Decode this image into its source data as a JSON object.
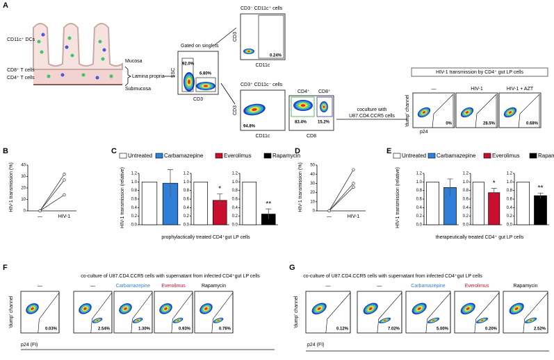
{
  "panel_labels": [
    "A",
    "B",
    "C",
    "D",
    "E",
    "F",
    "G"
  ],
  "panel_a": {
    "tissue": {
      "dc": "CD11c⁺ DCs",
      "cd8": "CD8⁺ T cells",
      "cd4": "CD4⁺ T cells",
      "mucosa": "Mucosa",
      "lamina": "Lamina propria",
      "submucosa": "Submucosa"
    },
    "gating": {
      "title": "Gated on singlets",
      "y": "SSC",
      "x": "CD3",
      "gate1": "92.0%",
      "gate2": "6.80%"
    },
    "dc_plot": {
      "title": "CD3⁻ CD11c⁺ cells",
      "y": "CD3",
      "x": "CD11c",
      "gate": "0.24%"
    },
    "t_plot": {
      "title": "CD3⁺ CD11c⁻ cells",
      "y": "CD3",
      "x": "CD11c",
      "gate": "94.8%"
    },
    "cd4cd8_plot": {
      "cd4": "CD4⁺",
      "cd8": "CD8⁺",
      "x": "CD8",
      "gate1": "83.4%",
      "gate2": "15.2%"
    },
    "coculture": [
      "coculture with",
      "U87.CD4.CCR5 cells"
    ],
    "transmission": {
      "title": "HIV-1 transmission by CD4⁺ gut LP cells",
      "ylabel": "'dump' channel",
      "xlabel": "p24",
      "conditions": [
        "—",
        "HIV-1",
        "HIV-1 + AZT"
      ],
      "gates": [
        "0%",
        "28.5%",
        "0.68%"
      ]
    }
  },
  "panel_c": {
    "legend": [
      {
        "name": "Untreated",
        "color": "#ffffff"
      },
      {
        "name": "Carbamazepine",
        "color": "#2f7fd8"
      },
      {
        "name": "Everolimus",
        "color": "#c8102e"
      },
      {
        "name": "Rapamycin",
        "color": "#000000"
      }
    ],
    "ylabel": "HIV-1 transmission (relative)",
    "xlabel": "prophylactically treated CD4⁺gut LP cells"
  },
  "panel_e": {
    "legend": [
      {
        "name": "Untreated",
        "color": "#ffffff"
      },
      {
        "name": "Carbamazepine",
        "color": "#2f7fd8"
      },
      {
        "name": "Everolimus",
        "color": "#c8102e"
      },
      {
        "name": "Rapamycin",
        "color": "#000000"
      }
    ],
    "ylabel": "HIV-1 transmission (relative)",
    "xlabel": "therapeutically treated CD4⁺ gut LP cells"
  },
  "panel_f": {
    "title": "co-culture of U87.CD4.CCR5 cells with supernatant from infected CD4⁺gut LP cells",
    "conditions": [
      "—",
      "—",
      "Carbamazepine",
      "Everolimus",
      "Rapamycin"
    ],
    "condition_colors": [
      "#000000",
      "#000000",
      "#2f7fd8",
      "#c8102e",
      "#000000"
    ],
    "gates": [
      "0.03%",
      "2.54%",
      "1.30%",
      "0.93%",
      "0.76%"
    ],
    "ylabel": "'dump' channel",
    "xlabel": "p24 (FI)"
  },
  "panel_g": {
    "title": "co-culture of U87.CD4.CCR5 cells with supernatant from infected CD4⁺gut LP cells",
    "conditions": [
      "—",
      "—",
      "Carbamazepine",
      "Everolimus",
      "Rapamycin"
    ],
    "condition_colors": [
      "#000000",
      "#000000",
      "#2f7fd8",
      "#c8102e",
      "#000000"
    ],
    "gates": [
      "0.12%",
      "7.02%",
      "5.00%",
      "0.20%",
      "2.52%"
    ],
    "ylabel": "'dump' channel",
    "xlabel": "p24 (FI)"
  },
  "chart_data": [
    {
      "type": "line",
      "ylabel": "HIV-1 transmission (%)",
      "categories": [
        "—",
        "HIV-1"
      ],
      "ylim": [
        0,
        40
      ],
      "yticks": [
        0,
        10,
        20,
        30,
        40
      ],
      "color": "#333333",
      "series": [
        {
          "values": [
            0,
            32
          ]
        },
        {
          "values": [
            0,
            27
          ]
        },
        {
          "values": [
            0,
            14
          ]
        }
      ]
    },
    {
      "type": "bar",
      "values": [
        1.0,
        0.97
      ],
      "errors": [
        null,
        0.32
      ],
      "colors": [
        "#ffffff",
        "#2f7fd8"
      ],
      "ylim": [
        0,
        1.2
      ],
      "yticks": [
        {
          "value": 0,
          "label": "0.0"
        },
        {
          "value": 0.2,
          "label": "0.2"
        },
        {
          "value": 0.4,
          "label": "0.4"
        },
        {
          "value": 0.6,
          "label": "0.6"
        },
        {
          "value": 0.8,
          "label": "0.8"
        },
        {
          "value": 1.0,
          "label": "1.0"
        },
        {
          "value": 1.2,
          "label": "1.2"
        }
      ]
    },
    {
      "type": "bar",
      "values": [
        1.0,
        0.57
      ],
      "errors": [
        null,
        0.15
      ],
      "colors": [
        "#ffffff",
        "#c8102e"
      ],
      "annotation": "*",
      "ylim": [
        0,
        1.2
      ],
      "yticks": [
        {
          "value": 0,
          "label": "0.0"
        },
        {
          "value": 0.2,
          "label": "0.2"
        },
        {
          "value": 0.4,
          "label": "0.4"
        },
        {
          "value": 0.6,
          "label": "0.6"
        },
        {
          "value": 0.8,
          "label": "0.8"
        },
        {
          "value": 1.0,
          "label": "1.0"
        },
        {
          "value": 1.2,
          "label": "1.2"
        }
      ]
    },
    {
      "type": "bar",
      "values": [
        1.0,
        0.25
      ],
      "errors": [
        null,
        0.12
      ],
      "colors": [
        "#ffffff",
        "#000000"
      ],
      "annotation": "**",
      "ylim": [
        0,
        1.2
      ],
      "yticks": [
        {
          "value": 0,
          "label": "0.0"
        },
        {
          "value": 0.2,
          "label": "0.2"
        },
        {
          "value": 0.4,
          "label": "0.4"
        },
        {
          "value": 0.6,
          "label": "0.6"
        },
        {
          "value": 0.8,
          "label": "0.8"
        },
        {
          "value": 1.0,
          "label": "1.0"
        },
        {
          "value": 1.2,
          "label": "1.2"
        }
      ]
    },
    {
      "type": "line",
      "ylabel": "HIV-1 transmission (%)",
      "categories": [
        "—",
        "HIV-1"
      ],
      "ylim": [
        0,
        50
      ],
      "yticks": [
        0,
        10,
        20,
        30,
        40,
        50
      ],
      "color": "#333333",
      "series": [
        {
          "values": [
            0,
            45
          ]
        },
        {
          "values": [
            0,
            30
          ]
        },
        {
          "values": [
            0,
            26
          ]
        }
      ]
    },
    {
      "type": "bar",
      "values": [
        1.0,
        0.87
      ],
      "errors": [
        null,
        0.2
      ],
      "colors": [
        "#ffffff",
        "#2f7fd8"
      ],
      "ylim": [
        0,
        1.2
      ],
      "yticks": [
        {
          "value": 0,
          "label": "0.0"
        },
        {
          "value": 0.2,
          "label": "0.2"
        },
        {
          "value": 0.4,
          "label": "0.4"
        },
        {
          "value": 0.6,
          "label": "0.6"
        },
        {
          "value": 0.8,
          "label": "0.8"
        },
        {
          "value": 1.0,
          "label": "1.0"
        },
        {
          "value": 1.2,
          "label": "1.2"
        }
      ]
    },
    {
      "type": "bar",
      "values": [
        1.0,
        0.75
      ],
      "errors": [
        null,
        0.1
      ],
      "colors": [
        "#ffffff",
        "#c8102e"
      ],
      "annotation": "*",
      "ylim": [
        0,
        1.2
      ],
      "yticks": [
        {
          "value": 0,
          "label": "0.0"
        },
        {
          "value": 0.2,
          "label": "0.2"
        },
        {
          "value": 0.4,
          "label": "0.4"
        },
        {
          "value": 0.6,
          "label": "0.6"
        },
        {
          "value": 0.8,
          "label": "0.8"
        },
        {
          "value": 1.0,
          "label": "1.0"
        },
        {
          "value": 1.2,
          "label": "1.2"
        }
      ]
    },
    {
      "type": "bar",
      "values": [
        1.0,
        0.68
      ],
      "errors": [
        null,
        0.06
      ],
      "colors": [
        "#ffffff",
        "#000000"
      ],
      "annotation": "**",
      "ylim": [
        0,
        1.2
      ],
      "yticks": [
        {
          "value": 0,
          "label": "0.0"
        },
        {
          "value": 0.2,
          "label": "0.2"
        },
        {
          "value": 0.4,
          "label": "0.4"
        },
        {
          "value": 0.6,
          "label": "0.6"
        },
        {
          "value": 0.8,
          "label": "0.8"
        },
        {
          "value": 1.0,
          "label": "1.0"
        },
        {
          "value": 1.2,
          "label": "1.2"
        }
      ]
    }
  ]
}
